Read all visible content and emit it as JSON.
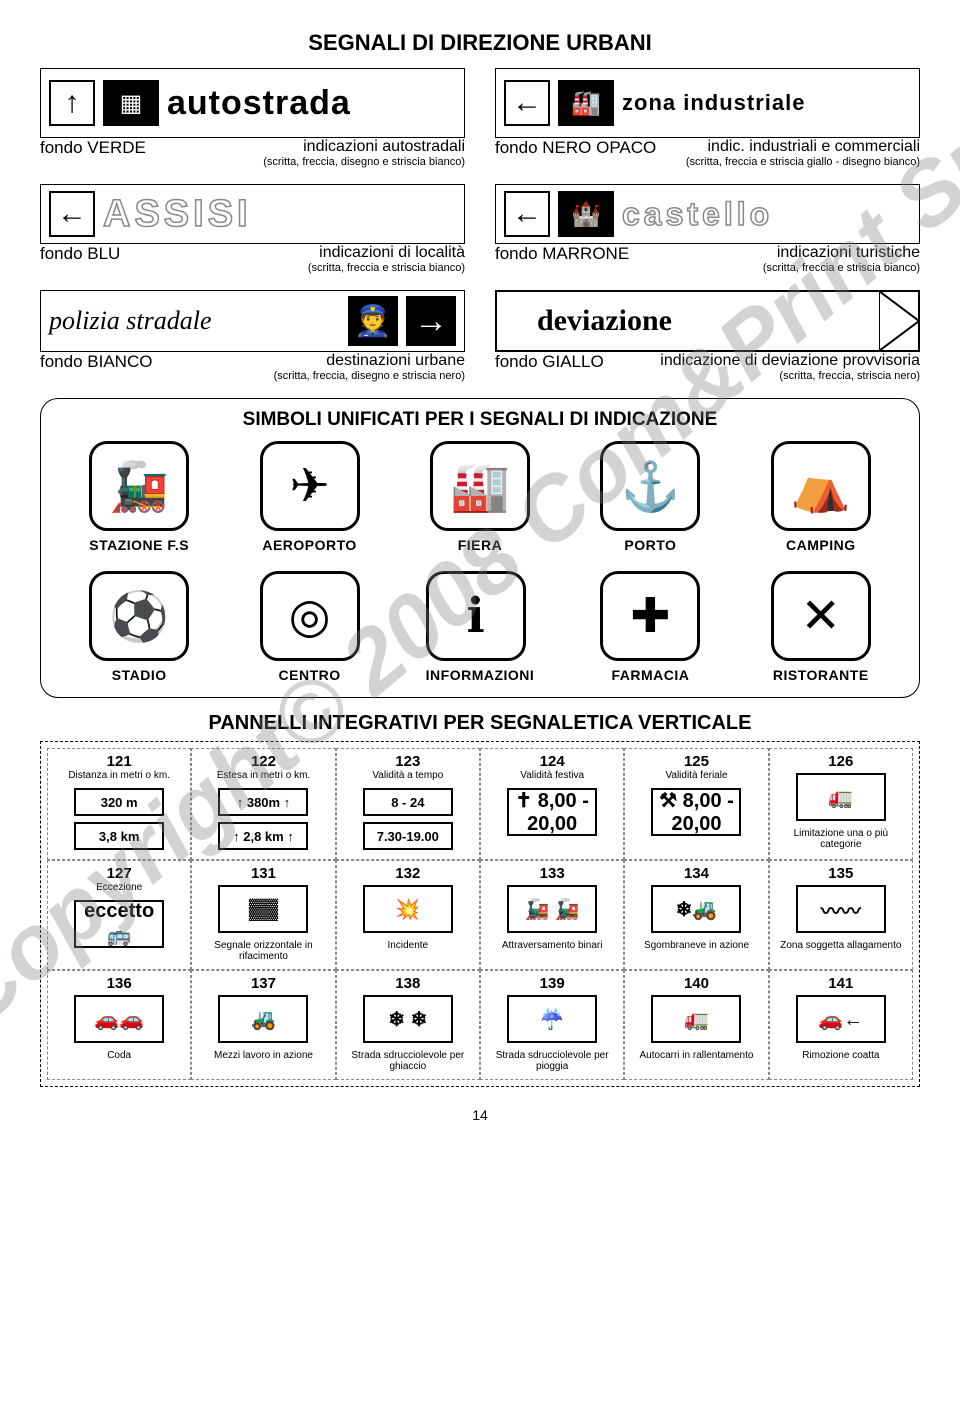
{
  "page_number": "14",
  "watermark": "Copyright© 2008 Com&Print Srl",
  "title_main": "SEGNALI DI DIREZIONE URBANI",
  "signs": [
    {
      "left": {
        "img_text": "autostrada",
        "arrow": "↑",
        "fondo": "fondo VERDE",
        "desc": "indicazioni autostradali",
        "sub": "(scritta, freccia, disegno e striscia bianco)"
      },
      "right": {
        "img_text": "zona industriale",
        "arrow": "←",
        "fondo": "fondo NERO OPACO",
        "desc": "indic. industriali e commerciali",
        "sub": "(scritta, freccia e striscia giallo - disegno bianco)"
      }
    },
    {
      "left": {
        "img_text": "ASSISI",
        "arrow": "←",
        "fondo": "fondo BLU",
        "desc": "indicazioni di località",
        "sub": "(scritta, freccia e striscia bianco)"
      },
      "right": {
        "img_text": "castello",
        "arrow": "←",
        "fondo": "fondo MARRONE",
        "desc": "indicazioni turistiche",
        "sub": "(scritta, freccia e striscia bianco)"
      }
    },
    {
      "left": {
        "img_text": "polizia stradale",
        "arrow": "→",
        "fondo": "fondo BIANCO",
        "desc": "destinazioni urbane",
        "sub": "(scritta, freccia, disegno e striscia nero)"
      },
      "right": {
        "img_text": "deviazione",
        "arrow": "",
        "fondo": "fondo GIALLO",
        "desc": "indicazione di deviazione provvisoria",
        "sub": "(scritta, freccia, striscia nero)"
      }
    }
  ],
  "symbols_title": "SIMBOLI UNIFICATI PER I SEGNALI DI INDICAZIONE",
  "symbols": [
    {
      "label": "STAZIONE F.S",
      "icon": "🚂"
    },
    {
      "label": "AEROPORTO",
      "icon": "✈"
    },
    {
      "label": "FIERA",
      "icon": "🏭"
    },
    {
      "label": "PORTO",
      "icon": "⚓"
    },
    {
      "label": "CAMPING",
      "icon": "⛺"
    },
    {
      "label": "STADIO",
      "icon": "⚽"
    },
    {
      "label": "CENTRO",
      "icon": "◎"
    },
    {
      "label": "INFORMAZIONI",
      "icon": "ℹ"
    },
    {
      "label": "FARMACIA",
      "icon": "✚"
    },
    {
      "label": "RISTORANTE",
      "icon": "✕"
    }
  ],
  "panels_title": "PANNELLI INTEGRATIVI PER SEGNALETICA VERTICALE",
  "panels": [
    {
      "num": "121",
      "sub": "Distanza in metri o km.",
      "imgs": [
        "320 m",
        "3,8 km"
      ],
      "caption": ""
    },
    {
      "num": "122",
      "sub": "Estesa in metri o km.",
      "imgs": [
        "↑ 380m ↑",
        "↑ 2,8 km ↑"
      ],
      "caption": ""
    },
    {
      "num": "123",
      "sub": "Validità a tempo",
      "imgs": [
        "8 - 24",
        "7.30-19.00"
      ],
      "caption": ""
    },
    {
      "num": "124",
      "sub": "Validità festiva",
      "imgs": [
        "✝ 8,00 - 20,00"
      ],
      "caption": ""
    },
    {
      "num": "125",
      "sub": "Validità feriale",
      "imgs": [
        "⚒ 8,00 - 20,00"
      ],
      "caption": ""
    },
    {
      "num": "126",
      "sub": "",
      "imgs": [
        "🚛"
      ],
      "caption": "Limitazione una o più categorie"
    },
    {
      "num": "127",
      "sub": "Eccezione",
      "imgs": [
        "eccetto 🚌"
      ],
      "caption": ""
    },
    {
      "num": "131",
      "sub": "",
      "imgs": [
        "▓▓"
      ],
      "caption": "Segnale orizzontale in rifacimento"
    },
    {
      "num": "132",
      "sub": "",
      "imgs": [
        "💥"
      ],
      "caption": "Incidente"
    },
    {
      "num": "133",
      "sub": "",
      "imgs": [
        "🚂 🚂"
      ],
      "caption": "Attraversamento binari"
    },
    {
      "num": "134",
      "sub": "",
      "imgs": [
        "❄🚜"
      ],
      "caption": "Sgombraneve in azione"
    },
    {
      "num": "135",
      "sub": "",
      "imgs": [
        "〰〰"
      ],
      "caption": "Zona soggetta allagamento"
    },
    {
      "num": "136",
      "sub": "",
      "imgs": [
        "🚗🚗"
      ],
      "caption": "Coda"
    },
    {
      "num": "137",
      "sub": "",
      "imgs": [
        "🚜"
      ],
      "caption": "Mezzi lavoro in azione"
    },
    {
      "num": "138",
      "sub": "",
      "imgs": [
        "❄ ❄"
      ],
      "caption": "Strada sdrucciolevole per ghiaccio"
    },
    {
      "num": "139",
      "sub": "",
      "imgs": [
        "☔"
      ],
      "caption": "Strada sdrucciolevole per pioggia"
    },
    {
      "num": "140",
      "sub": "",
      "imgs": [
        "🚛"
      ],
      "caption": "Autocarri in rallentamento"
    },
    {
      "num": "141",
      "sub": "",
      "imgs": [
        "🚗←"
      ],
      "caption": "Rimozione coatta"
    }
  ]
}
